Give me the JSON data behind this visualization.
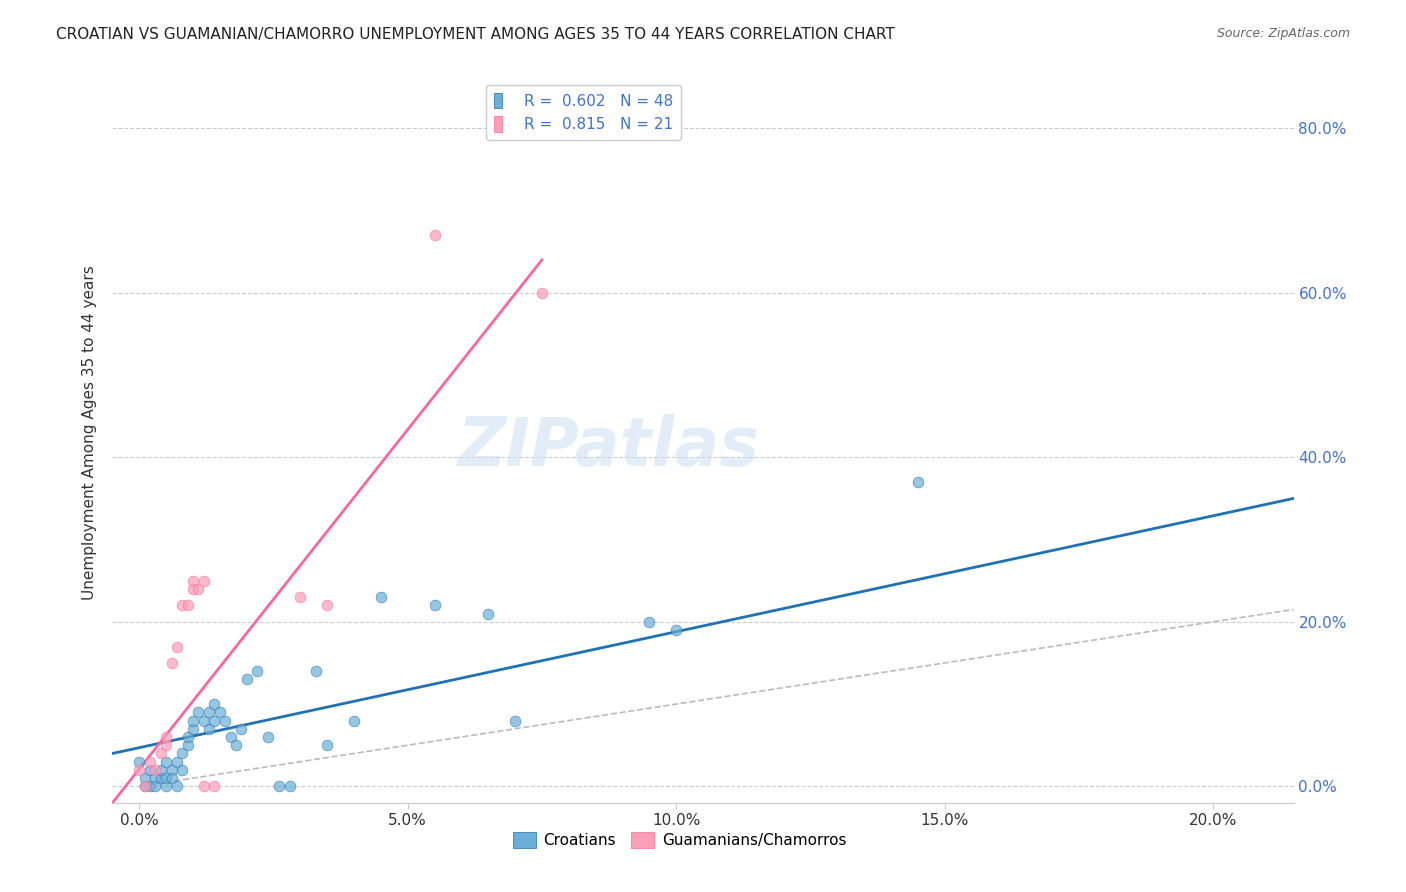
{
  "title": "CROATIAN VS GUAMANIAN/CHAMORRO UNEMPLOYMENT AMONG AGES 35 TO 44 YEARS CORRELATION CHART",
  "source": "Source: ZipAtlas.com",
  "ylabel": "Unemployment Among Ages 35 to 44 years",
  "xlabel_ticks": [
    0.0,
    0.05,
    0.1,
    0.15,
    0.2
  ],
  "ylabel_ticks": [
    0.0,
    0.2,
    0.4,
    0.6,
    0.8
  ],
  "xlim": [
    -0.005,
    0.215
  ],
  "ylim": [
    -0.02,
    0.88
  ],
  "blue_color": "#6baed6",
  "pink_color": "#fa9fb5",
  "blue_line_color": "#2171b5",
  "pink_line_color": "#f768a1",
  "ref_line_color": "#bbbbbb",
  "legend_blue_label": "R =  0.602   N = 48",
  "legend_pink_label": "R =  0.815   N = 21",
  "croatian_scatter": [
    [
      0.0,
      0.03
    ],
    [
      0.001,
      0.0
    ],
    [
      0.001,
      0.01
    ],
    [
      0.002,
      0.0
    ],
    [
      0.002,
      0.02
    ],
    [
      0.003,
      0.01
    ],
    [
      0.003,
      0.0
    ],
    [
      0.004,
      0.01
    ],
    [
      0.004,
      0.02
    ],
    [
      0.005,
      0.0
    ],
    [
      0.005,
      0.01
    ],
    [
      0.005,
      0.03
    ],
    [
      0.006,
      0.02
    ],
    [
      0.006,
      0.01
    ],
    [
      0.007,
      0.0
    ],
    [
      0.007,
      0.03
    ],
    [
      0.008,
      0.04
    ],
    [
      0.008,
      0.02
    ],
    [
      0.009,
      0.05
    ],
    [
      0.009,
      0.06
    ],
    [
      0.01,
      0.07
    ],
    [
      0.01,
      0.08
    ],
    [
      0.011,
      0.09
    ],
    [
      0.012,
      0.08
    ],
    [
      0.013,
      0.07
    ],
    [
      0.013,
      0.09
    ],
    [
      0.014,
      0.1
    ],
    [
      0.014,
      0.08
    ],
    [
      0.015,
      0.09
    ],
    [
      0.016,
      0.08
    ],
    [
      0.017,
      0.06
    ],
    [
      0.018,
      0.05
    ],
    [
      0.019,
      0.07
    ],
    [
      0.02,
      0.13
    ],
    [
      0.022,
      0.14
    ],
    [
      0.024,
      0.06
    ],
    [
      0.026,
      0.0
    ],
    [
      0.028,
      0.0
    ],
    [
      0.033,
      0.14
    ],
    [
      0.035,
      0.05
    ],
    [
      0.04,
      0.08
    ],
    [
      0.045,
      0.23
    ],
    [
      0.055,
      0.22
    ],
    [
      0.065,
      0.21
    ],
    [
      0.07,
      0.08
    ],
    [
      0.095,
      0.2
    ],
    [
      0.1,
      0.19
    ],
    [
      0.145,
      0.37
    ]
  ],
  "guam_scatter": [
    [
      0.0,
      0.02
    ],
    [
      0.001,
      0.0
    ],
    [
      0.002,
      0.03
    ],
    [
      0.003,
      0.02
    ],
    [
      0.004,
      0.04
    ],
    [
      0.005,
      0.05
    ],
    [
      0.005,
      0.06
    ],
    [
      0.006,
      0.15
    ],
    [
      0.007,
      0.17
    ],
    [
      0.008,
      0.22
    ],
    [
      0.009,
      0.22
    ],
    [
      0.01,
      0.24
    ],
    [
      0.01,
      0.25
    ],
    [
      0.011,
      0.24
    ],
    [
      0.012,
      0.25
    ],
    [
      0.012,
      0.0
    ],
    [
      0.014,
      0.0
    ],
    [
      0.03,
      0.23
    ],
    [
      0.035,
      0.22
    ],
    [
      0.055,
      0.67
    ],
    [
      0.075,
      0.6
    ]
  ],
  "blue_line": [
    [
      -0.005,
      0.04
    ],
    [
      0.215,
      0.35
    ]
  ],
  "pink_line": [
    [
      -0.005,
      -0.02
    ],
    [
      0.075,
      0.64
    ]
  ],
  "ref_line": [
    [
      0.0,
      0.0
    ],
    [
      0.215,
      0.215
    ]
  ],
  "watermark": "ZIPatlas",
  "legend_croatians": "Croatians",
  "legend_guamanians": "Guamanians/Chamorros"
}
